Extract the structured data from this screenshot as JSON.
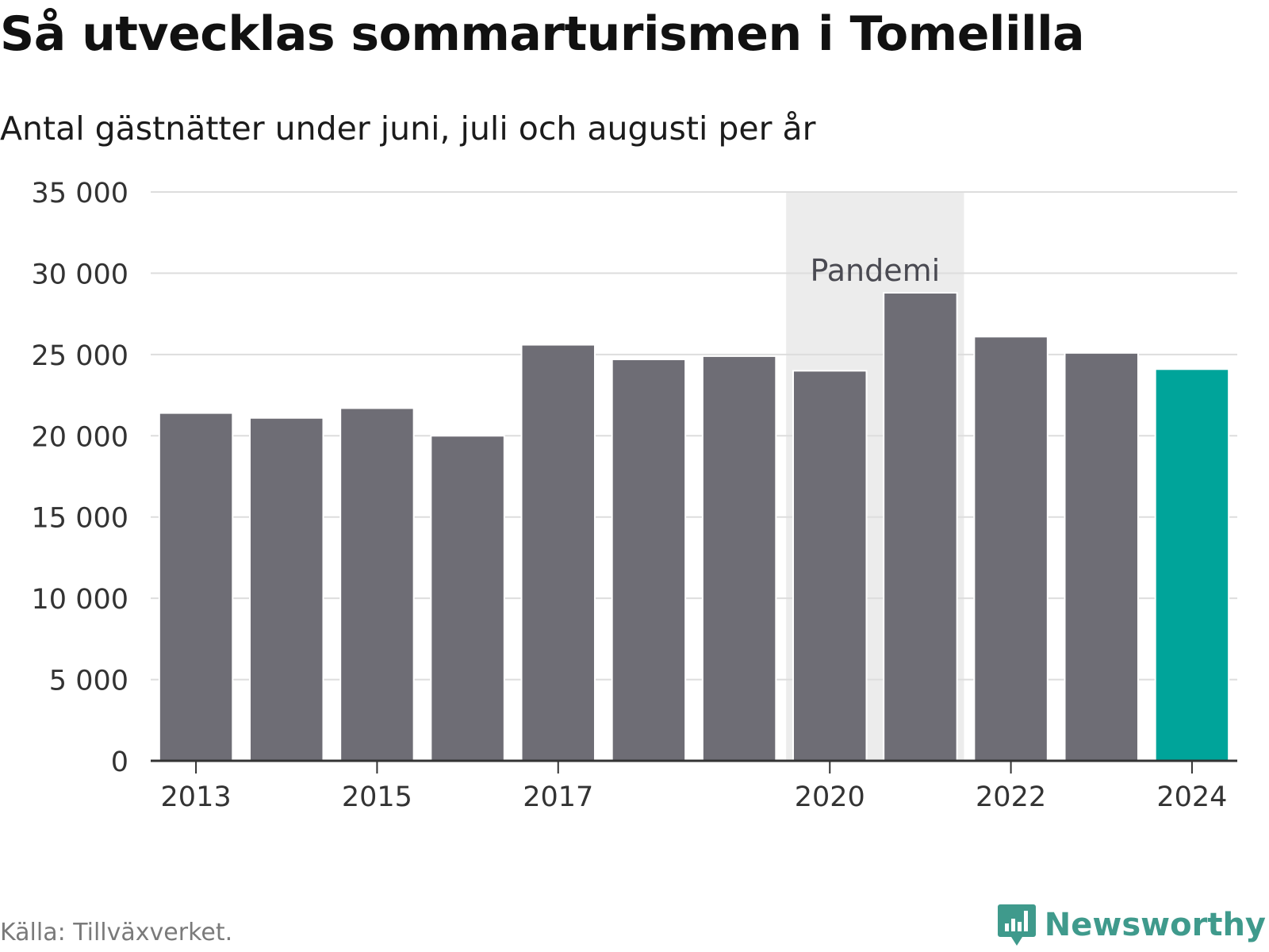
{
  "title": "Så utvecklas sommarturismen i Tomelilla",
  "subtitle": "Antal gästnätter under juni, juli och augusti per år",
  "source": "Källa: Tillväxverket.",
  "brand": {
    "name": "Newsworthy",
    "icon": "newsworthy-logo-icon",
    "color": "#3f9a8c"
  },
  "chart_data": {
    "type": "bar",
    "categories": [
      "2013",
      "2014",
      "2015",
      "2016",
      "2017",
      "2018",
      "2019",
      "2020",
      "2021",
      "2022",
      "2023",
      "2024"
    ],
    "values": [
      21400,
      21100,
      21700,
      20000,
      25600,
      24700,
      24900,
      24000,
      28800,
      26100,
      25100,
      24100
    ],
    "x_tick_labels": [
      "2013",
      "2015",
      "2017",
      "2020",
      "2022",
      "2024"
    ],
    "ylim": [
      0,
      35000
    ],
    "y_ticks": [
      0,
      5000,
      10000,
      15000,
      20000,
      25000,
      30000,
      35000
    ],
    "y_tick_labels": [
      "0",
      "5 000",
      "10 000",
      "15 000",
      "20 000",
      "25 000",
      "30 000",
      "35 000"
    ],
    "grid": true,
    "colors": {
      "bar": "#6e6d75",
      "highlight": "#00a49a",
      "highlight_category": "2024",
      "band": "#ececec",
      "grid": "#dddddd",
      "axis": "#333333"
    },
    "annotations": [
      {
        "label": "Pandemi",
        "from": "2020",
        "to": "2021"
      }
    ]
  }
}
